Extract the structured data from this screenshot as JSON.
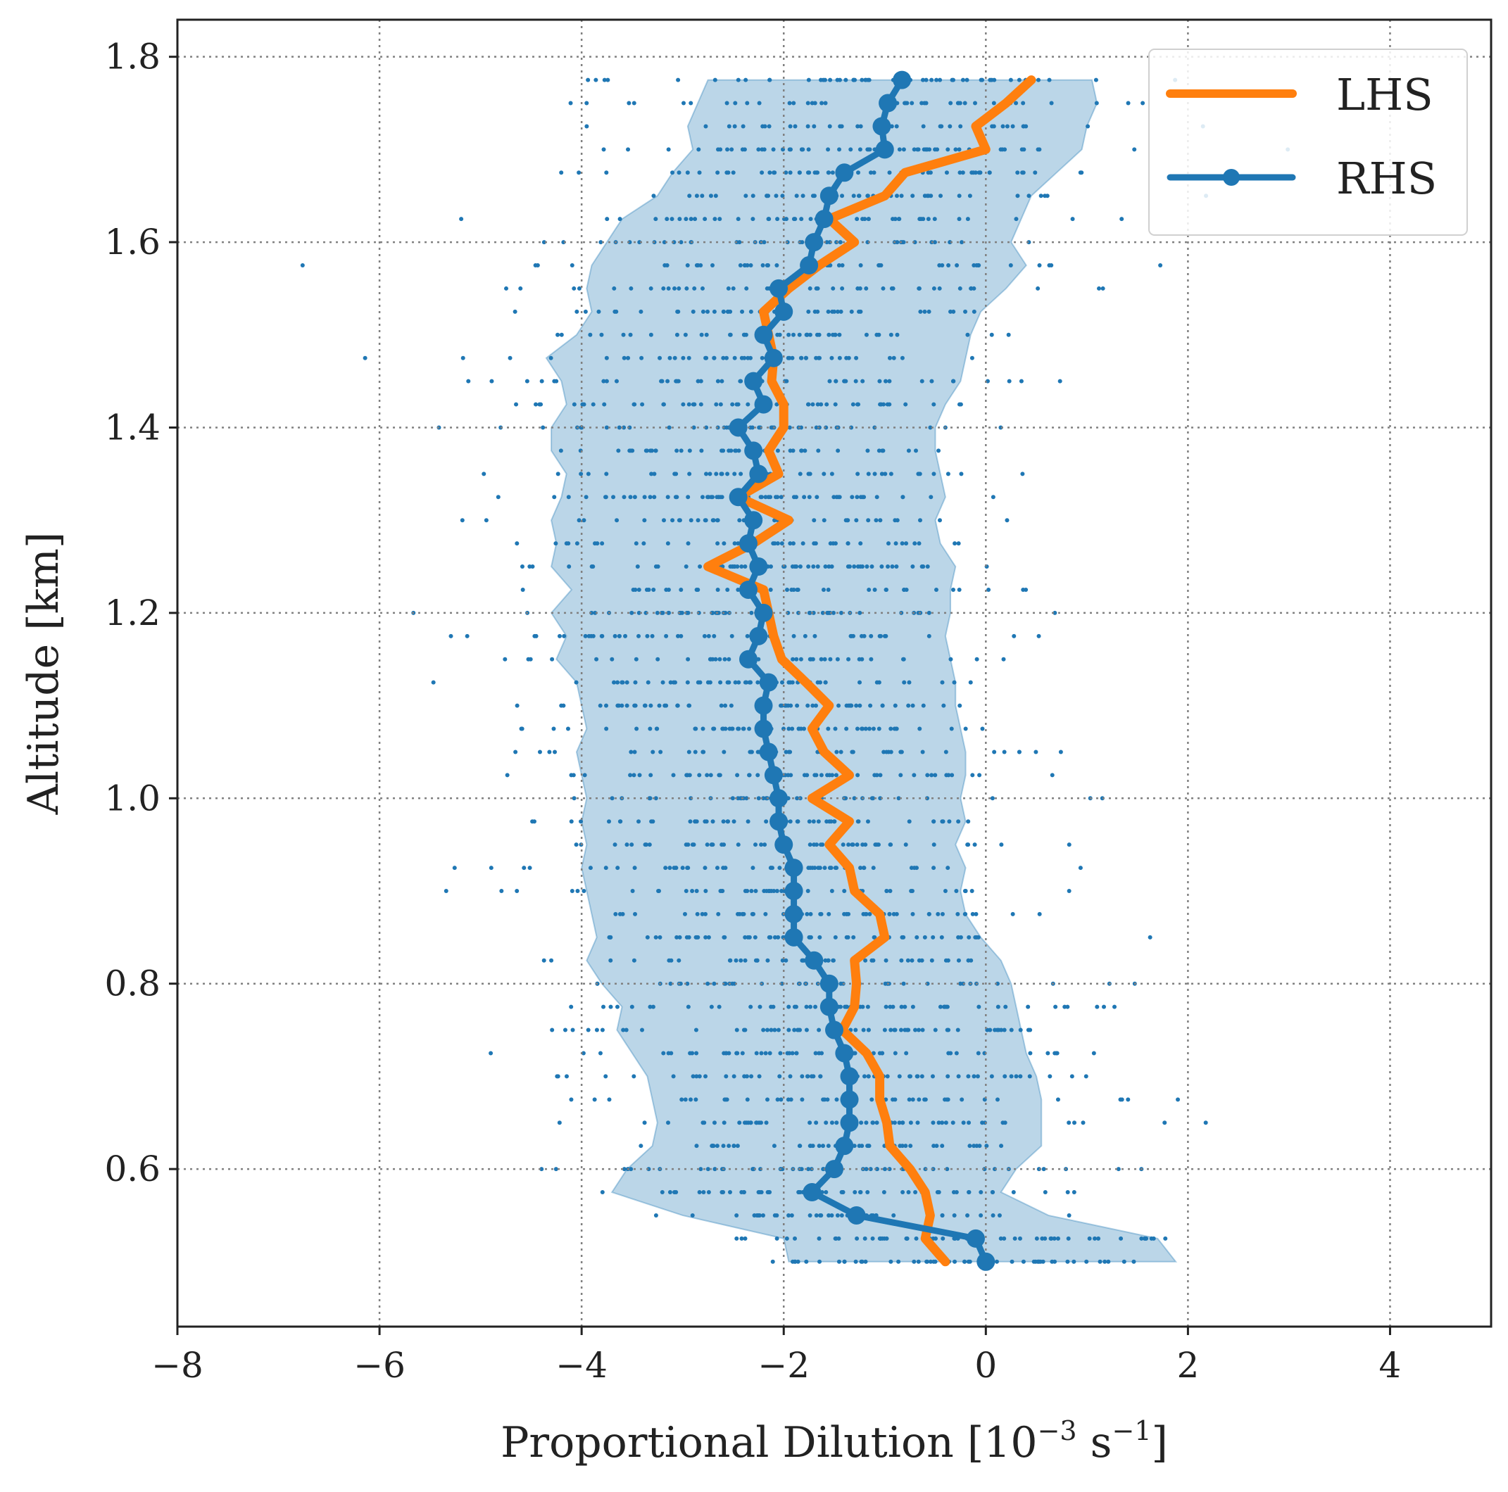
{
  "chart_data": {
    "type": "line",
    "xlabel": "Proportional Dilution [10",
    "xlabel_exp1": "−3",
    "xlabel_mid": " s",
    "xlabel_exp2": "−1",
    "xlabel_end": "]",
    "ylabel": "Altitude [km]",
    "xlim": [
      -8,
      5
    ],
    "ylim": [
      0.43,
      1.84
    ],
    "x_ticks": [
      -8,
      -6,
      -4,
      -2,
      0,
      2,
      4
    ],
    "x_tick_labels": [
      "−8",
      "−6",
      "−4",
      "−2",
      "0",
      "2",
      "4"
    ],
    "y_ticks": [
      0.6,
      0.8,
      1.0,
      1.2,
      1.4,
      1.6,
      1.8
    ],
    "y_tick_labels": [
      "0.6",
      "0.8",
      "1.0",
      "1.2",
      "1.4",
      "1.6",
      "1.8"
    ],
    "grid": true,
    "legend_position": "top-right",
    "legend": [
      "LHS",
      "RHS"
    ],
    "colors": {
      "LHS": "#ff7f0e",
      "RHS": "#1f77b4",
      "band": "#1f77b4",
      "axes": "#222222",
      "grid": "#808080"
    },
    "series": [
      {
        "name": "LHS",
        "style": "line",
        "altitude": [
          0.5,
          0.525,
          0.55,
          0.575,
          0.6,
          0.625,
          0.65,
          0.675,
          0.7,
          0.725,
          0.75,
          0.775,
          0.8,
          0.825,
          0.85,
          0.875,
          0.9,
          0.925,
          0.95,
          0.975,
          1.0,
          1.025,
          1.05,
          1.075,
          1.1,
          1.125,
          1.15,
          1.175,
          1.2,
          1.225,
          1.25,
          1.275,
          1.3,
          1.325,
          1.35,
          1.375,
          1.4,
          1.425,
          1.45,
          1.475,
          1.5,
          1.525,
          1.55,
          1.575,
          1.6,
          1.625,
          1.65,
          1.675,
          1.7,
          1.725,
          1.75,
          1.775
        ],
        "values": [
          -0.4,
          -0.6,
          -0.55,
          -0.6,
          -0.75,
          -0.95,
          -0.98,
          -1.05,
          -1.05,
          -1.18,
          -1.42,
          -1.3,
          -1.28,
          -1.3,
          -1.0,
          -1.05,
          -1.3,
          -1.35,
          -1.55,
          -1.35,
          -1.72,
          -1.35,
          -1.6,
          -1.72,
          -1.55,
          -1.78,
          -2.02,
          -2.1,
          -2.15,
          -2.2,
          -2.75,
          -2.3,
          -1.95,
          -2.45,
          -2.05,
          -2.15,
          -2.0,
          -2.0,
          -2.12,
          -2.1,
          -2.15,
          -2.2,
          -1.95,
          -1.65,
          -1.3,
          -1.55,
          -1.0,
          -0.8,
          0.0,
          -0.1,
          0.2,
          0.45
        ]
      },
      {
        "name": "RHS",
        "style": "line-markers",
        "altitude": [
          0.5,
          0.525,
          0.55,
          0.575,
          0.6,
          0.625,
          0.65,
          0.675,
          0.7,
          0.725,
          0.75,
          0.775,
          0.8,
          0.825,
          0.85,
          0.875,
          0.9,
          0.925,
          0.95,
          0.975,
          1.0,
          1.025,
          1.05,
          1.075,
          1.1,
          1.125,
          1.15,
          1.175,
          1.2,
          1.225,
          1.25,
          1.275,
          1.3,
          1.325,
          1.35,
          1.375,
          1.4,
          1.425,
          1.45,
          1.475,
          1.5,
          1.525,
          1.55,
          1.575,
          1.6,
          1.625,
          1.65,
          1.675,
          1.7,
          1.725,
          1.75,
          1.775
        ],
        "values": [
          0.0,
          -0.1,
          -1.28,
          -1.72,
          -1.5,
          -1.4,
          -1.35,
          -1.35,
          -1.35,
          -1.4,
          -1.5,
          -1.55,
          -1.55,
          -1.7,
          -1.9,
          -1.9,
          -1.9,
          -1.9,
          -2.0,
          -2.05,
          -2.05,
          -2.1,
          -2.15,
          -2.2,
          -2.2,
          -2.15,
          -2.35,
          -2.25,
          -2.2,
          -2.35,
          -2.25,
          -2.35,
          -2.3,
          -2.45,
          -2.25,
          -2.3,
          -2.45,
          -2.2,
          -2.3,
          -2.1,
          -2.2,
          -2.0,
          -2.05,
          -1.75,
          -1.7,
          -1.6,
          -1.55,
          -1.4,
          -1.0,
          -1.03,
          -0.97,
          -0.83
        ]
      }
    ],
    "band": {
      "altitude": [
        0.5,
        0.525,
        0.55,
        0.575,
        0.6,
        0.625,
        0.65,
        0.675,
        0.7,
        0.725,
        0.75,
        0.775,
        0.8,
        0.825,
        0.85,
        0.875,
        0.9,
        0.925,
        0.95,
        0.975,
        1.0,
        1.025,
        1.05,
        1.075,
        1.1,
        1.125,
        1.15,
        1.175,
        1.2,
        1.225,
        1.25,
        1.275,
        1.3,
        1.325,
        1.35,
        1.375,
        1.4,
        1.425,
        1.45,
        1.475,
        1.5,
        1.525,
        1.55,
        1.575,
        1.6,
        1.625,
        1.65,
        1.675,
        1.7,
        1.725,
        1.75,
        1.775
      ],
      "lower": [
        -1.95,
        -2.0,
        -3.0,
        -3.7,
        -3.55,
        -3.3,
        -3.25,
        -3.3,
        -3.35,
        -3.5,
        -3.65,
        -3.6,
        -3.8,
        -3.95,
        -3.85,
        -3.9,
        -3.95,
        -4.0,
        -3.95,
        -4.0,
        -3.95,
        -4.0,
        -4.05,
        -3.95,
        -4.0,
        -4.05,
        -4.25,
        -4.15,
        -4.3,
        -4.1,
        -4.3,
        -4.25,
        -4.3,
        -4.2,
        -4.15,
        -4.3,
        -4.3,
        -4.15,
        -4.2,
        -4.35,
        -4.05,
        -3.9,
        -3.95,
        -3.9,
        -3.75,
        -3.6,
        -3.25,
        -3.1,
        -2.9,
        -2.95,
        -2.85,
        -2.75
      ],
      "upper": [
        1.88,
        1.7,
        0.62,
        0.15,
        0.3,
        0.55,
        0.55,
        0.55,
        0.5,
        0.4,
        0.35,
        0.3,
        0.25,
        0.15,
        -0.05,
        -0.2,
        -0.25,
        -0.2,
        -0.3,
        -0.2,
        -0.25,
        -0.2,
        -0.2,
        -0.25,
        -0.3,
        -0.3,
        -0.35,
        -0.4,
        -0.35,
        -0.35,
        -0.3,
        -0.45,
        -0.5,
        -0.4,
        -0.45,
        -0.5,
        -0.5,
        -0.4,
        -0.25,
        -0.2,
        -0.15,
        -0.05,
        0.2,
        0.4,
        0.25,
        0.35,
        0.45,
        0.7,
        0.95,
        1.0,
        1.1,
        1.05
      ]
    }
  }
}
